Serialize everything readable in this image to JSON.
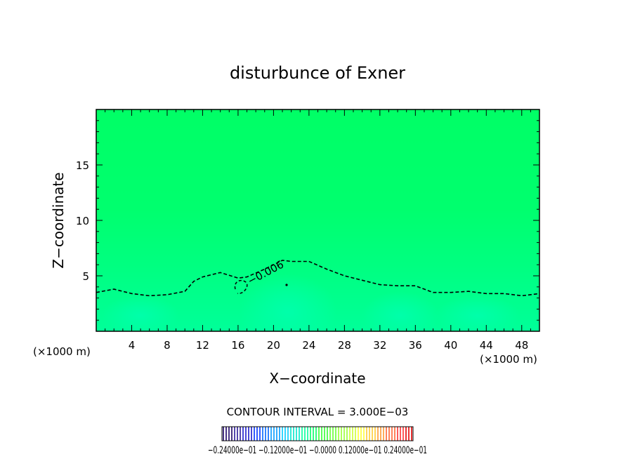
{
  "chart_data": {
    "type": "heatmap",
    "title": "disturbunce of Exner",
    "xlabel": "X−coordinate",
    "ylabel": "Z−coordinate",
    "x_unit_left": "(×1000 m)",
    "x_unit_right": "(×1000 m)",
    "xlim": [
      0,
      50
    ],
    "ylim": [
      0,
      20
    ],
    "x_ticks": [
      4,
      8,
      12,
      16,
      20,
      24,
      28,
      32,
      36,
      40,
      44,
      48
    ],
    "x_tick_labels": [
      "4",
      "8",
      "12",
      "16",
      "20",
      "24",
      "28",
      "32",
      "36",
      "40",
      "44",
      "48"
    ],
    "y_ticks": [
      5,
      10,
      15
    ],
    "y_tick_labels": [
      "5",
      "10",
      "15"
    ],
    "contour_interval_text": "CONTOUR INTERVAL = 3.000E−03",
    "contour": {
      "level_label": "−0.006",
      "style": "dashed",
      "x": [
        0,
        2,
        4,
        6,
        8,
        10,
        11,
        12,
        14,
        16,
        17,
        19,
        20,
        21,
        22,
        24,
        26,
        28,
        30,
        32,
        34,
        36,
        38,
        40,
        42,
        44,
        46,
        48,
        50
      ],
      "z": [
        3.5,
        3.8,
        3.4,
        3.2,
        3.3,
        3.6,
        4.5,
        4.9,
        5.3,
        4.8,
        4.9,
        5.6,
        6.0,
        6.4,
        6.3,
        6.3,
        5.6,
        5.0,
        4.6,
        4.2,
        4.1,
        4.1,
        3.5,
        3.5,
        3.6,
        3.4,
        3.4,
        3.2,
        3.4
      ]
    },
    "colorbar": {
      "labels_text": "−0.24000e−01  −0.12000e−01  −0.0000  0.12000e−01  0.24000e−01",
      "colors": [
        "#1a0066",
        "#2a1a99",
        "#1a1acc",
        "#0033ff",
        "#0066ff",
        "#0099ff",
        "#00ccff",
        "#00e6cc",
        "#00ff99",
        "#00ff66",
        "#33ff33",
        "#66ff33",
        "#99ff33",
        "#ccff33",
        "#ffff33",
        "#ffcc33",
        "#ff9933",
        "#ff6633",
        "#ff3333",
        "#e60000"
      ]
    },
    "field_colors": {
      "top": "#00ff66",
      "mid": "#00ff80",
      "low": "#00ff99",
      "blob": "#00ffaa"
    }
  }
}
